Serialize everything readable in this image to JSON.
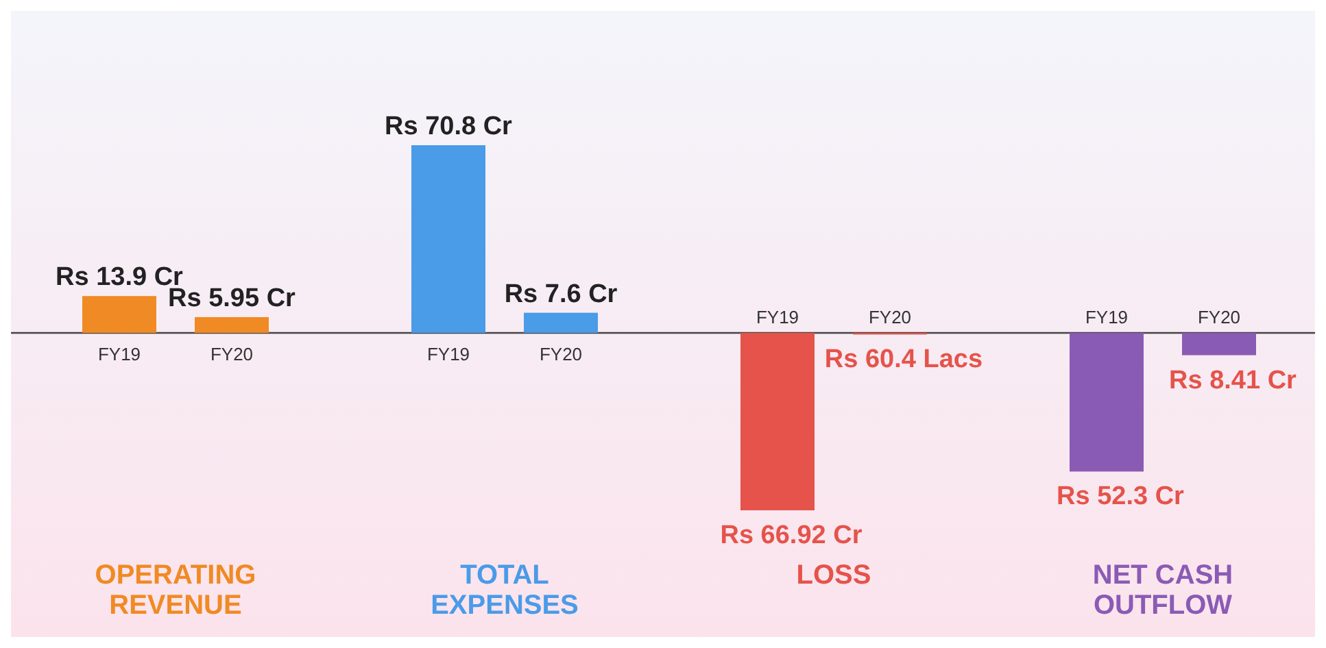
{
  "chart_data": {
    "type": "bar",
    "categories": [
      "OPERATING REVENUE",
      "TOTAL EXPENSES",
      "LOSS",
      "NET CASH OUTFLOW"
    ],
    "series": [
      {
        "name": "FY19",
        "values": [
          13.9,
          70.8,
          -66.92,
          -52.3
        ],
        "colors": [
          "#f08a24",
          "#4a9be8",
          "#e5534b",
          "#8a5bb5"
        ],
        "value_labels": [
          "Rs 13.9 Cr",
          "Rs 70.8 Cr",
          "Rs 66.92 Cr",
          "Rs 52.3 Cr"
        ]
      },
      {
        "name": "FY20",
        "values": [
          5.95,
          7.6,
          -0.604,
          -8.41
        ],
        "colors": [
          "#f08a24",
          "#4a9be8",
          "#e5534b",
          "#8a5bb5"
        ],
        "value_labels": [
          "Rs 5.95 Cr",
          "Rs 7.6 Cr",
          "Rs 60.4 Lacs",
          "Rs 8.41 Cr"
        ]
      }
    ],
    "legend": false,
    "grid": false
  }
}
